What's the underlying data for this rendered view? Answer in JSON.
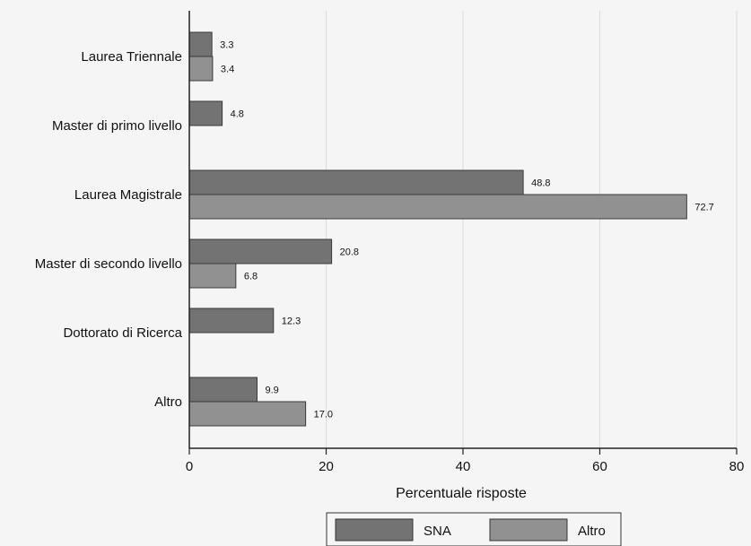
{
  "chart_data": {
    "type": "bar",
    "orientation": "horizontal",
    "categories": [
      "Laurea Triennale",
      "Master di primo livello",
      "Laurea Magistrale",
      "Master di secondo livello",
      "Dottorato di Ricerca",
      "Altro"
    ],
    "series": [
      {
        "name": "SNA",
        "values": [
          3.3,
          4.8,
          48.8,
          20.8,
          12.3,
          9.9
        ],
        "color": "#737373"
      },
      {
        "name": "Altro",
        "values": [
          3.4,
          null,
          72.7,
          6.8,
          null,
          17.0
        ],
        "color": "#919191"
      }
    ],
    "data_labels": {
      "SNA": [
        "3.3",
        "4.8",
        "48.8",
        "20.8",
        "12.3",
        "9.9"
      ],
      "Altro": [
        "3.4",
        "",
        "72.7",
        "6.8",
        "",
        "17.0"
      ]
    },
    "xlabel": "Percentuale risposte",
    "ylabel": "",
    "xlim": [
      0,
      80
    ],
    "xticks": [
      0,
      20,
      40,
      60,
      80
    ],
    "xtick_labels": [
      "0",
      "20",
      "40",
      "60",
      "80"
    ],
    "grid": true,
    "legend_position": "bottom"
  }
}
